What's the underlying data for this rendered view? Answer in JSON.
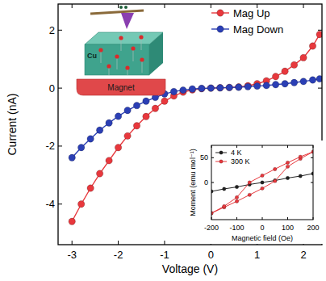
{
  "chart_data": [
    {
      "type": "line",
      "x_label": "Voltage (V)",
      "y_label": "Current (nA)",
      "x": [
        -3.0,
        -2.8,
        -2.6,
        -2.4,
        -2.2,
        -2.0,
        -1.8,
        -1.6,
        -1.4,
        -1.2,
        -1.0,
        -0.8,
        -0.6,
        -0.4,
        -0.2,
        0,
        0.2,
        0.4,
        0.6,
        0.8,
        1.0,
        1.2,
        1.4,
        1.6,
        1.8,
        2.0,
        2.2,
        2.35
      ],
      "xlim": [
        -3.3,
        2.4
      ],
      "xticks": [
        -3,
        -2,
        -1,
        0,
        1,
        2
      ],
      "ylim": [
        -5.4,
        2.9
      ],
      "yticks": [
        -4,
        -2,
        0,
        2
      ],
      "legend": "upper right",
      "series": [
        {
          "name": "Mag Up",
          "color": "#e8383d",
          "marker": "circle",
          "values": [
            -4.6,
            -4.0,
            -3.45,
            -2.95,
            -2.5,
            -2.05,
            -1.65,
            -1.3,
            -0.98,
            -0.7,
            -0.45,
            -0.27,
            -0.14,
            -0.06,
            -0.02,
            0,
            0.01,
            0.02,
            0.04,
            0.08,
            0.15,
            0.25,
            0.4,
            0.58,
            0.8,
            1.05,
            1.45,
            1.85
          ]
        },
        {
          "name": "Mag Down",
          "color": "#2b3fb5",
          "marker": "circle",
          "values": [
            -2.4,
            -2.05,
            -1.75,
            -1.45,
            -1.2,
            -0.97,
            -0.77,
            -0.6,
            -0.45,
            -0.32,
            -0.2,
            -0.12,
            -0.07,
            -0.03,
            -0.01,
            0,
            0.01,
            0.02,
            0.03,
            0.05,
            0.07,
            0.09,
            0.12,
            0.15,
            0.19,
            0.23,
            0.28,
            0.32
          ]
        }
      ]
    },
    {
      "type": "line",
      "x_label": "Magnetic field (Oe)",
      "y_label": "Moment (emu mol⁻¹)",
      "xlim": [
        -200,
        200
      ],
      "xticks": [
        -200,
        -100,
        0,
        100,
        200
      ],
      "ylim": [
        -75,
        75
      ],
      "yticks": [
        0,
        50
      ],
      "legend": "upper left",
      "series": [
        {
          "name": "4 K",
          "color": "#222222",
          "marker": "circle",
          "x": [
            -200,
            -150,
            -100,
            -50,
            0,
            50,
            100,
            150,
            200
          ],
          "values": [
            -18,
            -13,
            -9,
            -4,
            0,
            4,
            9,
            13,
            18
          ]
        },
        {
          "name": "300 K",
          "color": "#e8383d",
          "marker": "circle",
          "x": [
            -200,
            -150,
            -100,
            -50,
            0,
            50,
            100,
            150,
            200,
            150,
            100,
            50,
            0,
            -50,
            -100,
            -150,
            -200
          ],
          "values": [
            -62,
            -50,
            -38,
            -25,
            -12,
            3,
            32,
            48,
            62,
            52,
            40,
            27,
            14,
            0,
            -30,
            -48,
            -62
          ]
        }
      ]
    }
  ],
  "schematic": {
    "labels": [
      "Cu",
      "Magnet"
    ]
  }
}
